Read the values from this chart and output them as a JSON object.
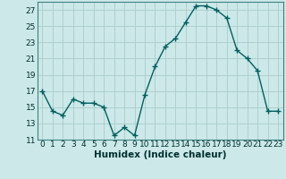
{
  "x": [
    0,
    1,
    2,
    3,
    4,
    5,
    6,
    7,
    8,
    9,
    10,
    11,
    12,
    13,
    14,
    15,
    16,
    17,
    18,
    19,
    20,
    21,
    22,
    23
  ],
  "y": [
    17,
    14.5,
    14,
    16,
    15.5,
    15.5,
    15,
    11.5,
    12.5,
    11.5,
    16.5,
    20,
    22.5,
    23.5,
    25.5,
    27.5,
    27.5,
    27,
    26,
    22,
    21,
    19.5,
    14.5,
    14.5
  ],
  "xlabel": "Humidex (Indice chaleur)",
  "ylim": [
    11,
    28
  ],
  "yticks": [
    11,
    13,
    15,
    17,
    19,
    21,
    23,
    25,
    27
  ],
  "xticks": [
    0,
    1,
    2,
    3,
    4,
    5,
    6,
    7,
    8,
    9,
    10,
    11,
    12,
    13,
    14,
    15,
    16,
    17,
    18,
    19,
    20,
    21,
    22,
    23
  ],
  "xlabels": [
    "0",
    "1",
    "2",
    "3",
    "4",
    "5",
    "6",
    "7",
    "8",
    "9",
    "10",
    "11",
    "12",
    "13",
    "14",
    "15",
    "16",
    "17",
    "18",
    "19",
    "20",
    "21",
    "22",
    "23"
  ],
  "line_color": "#006060",
  "bg_color": "#cce8e8",
  "grid_color": "#aacccc",
  "marker": "+",
  "marker_size": 4,
  "line_width": 1.0,
  "tick_fontsize": 6.5,
  "xlabel_fontsize": 7.5
}
